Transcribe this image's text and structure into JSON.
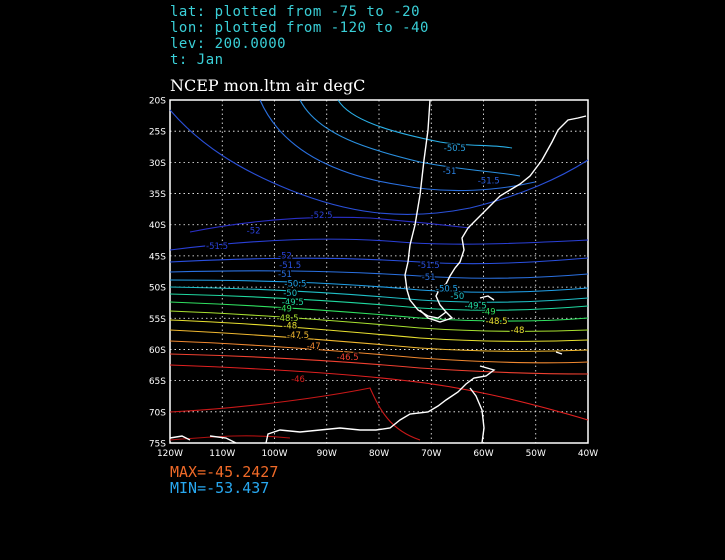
{
  "header": {
    "lat_line": "lat: plotted from -75 to -20",
    "lon_line": "lon: plotted from -120 to -40",
    "lev_line": "lev: 200.0000",
    "t_line": "t: Jan"
  },
  "title": "NCEP mon.ltm air degC",
  "stats": {
    "max_line": "MAX=-45.2427",
    "min_line": "MIN=-53.437",
    "max_color": "#f06a28",
    "min_color": "#28a8f0"
  },
  "axes": {
    "lat_labels": [
      "20S",
      "25S",
      "30S",
      "35S",
      "40S",
      "45S",
      "50S",
      "55S",
      "60S",
      "65S",
      "70S",
      "75S"
    ],
    "lon_labels": [
      "120W",
      "110W",
      "100W",
      "90W",
      "80W",
      "70W",
      "60W",
      "50W",
      "40W"
    ],
    "lat_range": [
      -75,
      -20
    ],
    "lon_range": [
      -120,
      -40
    ]
  },
  "contour_labels": [
    {
      "text": "-50.5",
      "lon": -65.5,
      "lat": -27.8,
      "color": "#2aa0e0"
    },
    {
      "text": "-51",
      "lon": -66.5,
      "lat": -31.5,
      "color": "#2a80e0"
    },
    {
      "text": "-51.5",
      "lon": -59,
      "lat": -33,
      "color": "#2a60e0"
    },
    {
      "text": "-52.5",
      "lon": -91,
      "lat": -38.5,
      "color": "#2a40d8"
    },
    {
      "text": "-52",
      "lon": -104,
      "lat": -41,
      "color": "#2a40d8"
    },
    {
      "text": "-51.5",
      "lon": -111,
      "lat": -43.5,
      "color": "#2a40d8"
    },
    {
      "text": "-52",
      "lon": -98,
      "lat": -45,
      "color": "#2a40d8"
    },
    {
      "text": "-51.5",
      "lon": -97,
      "lat": -46.5,
      "color": "#2a50e0"
    },
    {
      "text": "-51",
      "lon": -98,
      "lat": -48,
      "color": "#2a70e0"
    },
    {
      "text": "-50.5",
      "lon": -96,
      "lat": -49.5,
      "color": "#20a0e8"
    },
    {
      "text": "-50",
      "lon": -97,
      "lat": -51,
      "color": "#20c0c8"
    },
    {
      "text": "-49.5",
      "lon": -96.5,
      "lat": -52.5,
      "color": "#20d8a0"
    },
    {
      "text": "-49",
      "lon": -98,
      "lat": -53.5,
      "color": "#30e060"
    },
    {
      "text": "-48.5",
      "lon": -97.5,
      "lat": -55,
      "color": "#a8e030"
    },
    {
      "text": "-48",
      "lon": -97,
      "lat": -56.2,
      "color": "#e8e030"
    },
    {
      "text": "-47.5",
      "lon": -95.5,
      "lat": -57.8,
      "color": "#f0b830"
    },
    {
      "text": "-47",
      "lon": -92.5,
      "lat": -59.5,
      "color": "#f08830"
    },
    {
      "text": "-46.5",
      "lon": -86,
      "lat": -61.3,
      "color": "#f04030"
    },
    {
      "text": "-46",
      "lon": -95.5,
      "lat": -64.8,
      "color": "#e02020"
    },
    {
      "text": "-51.5",
      "lon": -70.5,
      "lat": -46.5,
      "color": "#2a50e0"
    },
    {
      "text": "-51",
      "lon": -70.5,
      "lat": -48.5,
      "color": "#2a70e0"
    },
    {
      "text": "-50.5",
      "lon": -67,
      "lat": -50.3,
      "color": "#20a0e8"
    },
    {
      "text": "-50",
      "lon": -65,
      "lat": -51.5,
      "color": "#20c0c8"
    },
    {
      "text": "-49.5",
      "lon": -61.5,
      "lat": -53,
      "color": "#20d8a0"
    },
    {
      "text": "-49",
      "lon": -59,
      "lat": -54,
      "color": "#30e060"
    },
    {
      "text": "-48.5",
      "lon": -57.5,
      "lat": -55.5,
      "color": "#e8e030"
    },
    {
      "text": "-48",
      "lon": -53.5,
      "lat": -57,
      "color": "#e8e030"
    }
  ]
}
